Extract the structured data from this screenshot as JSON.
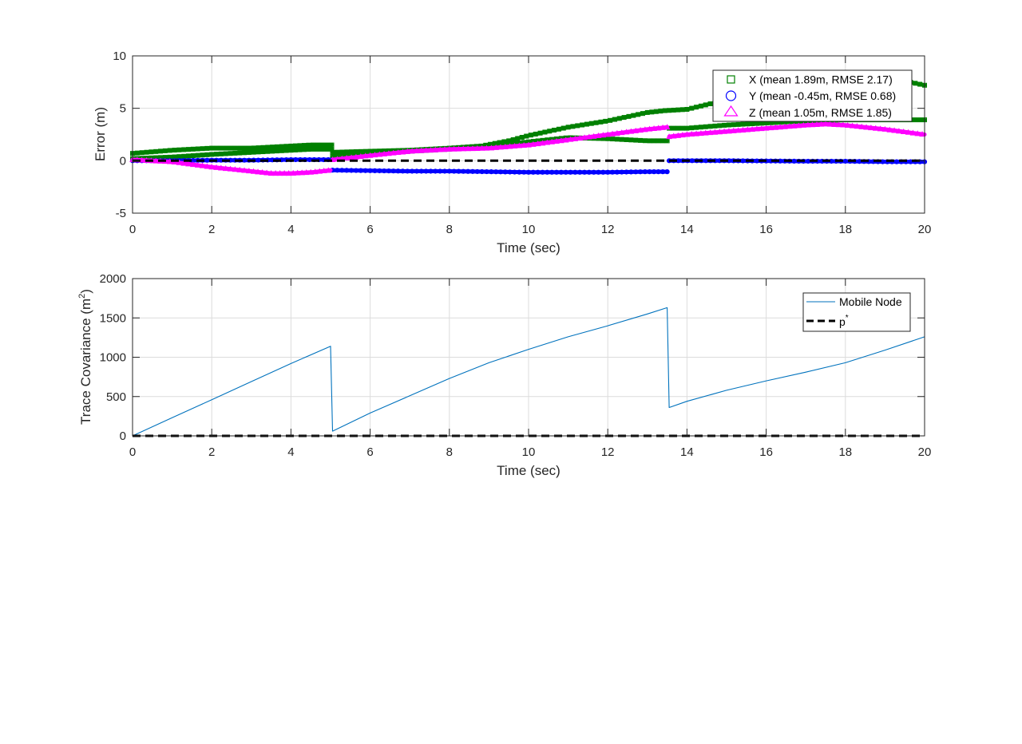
{
  "figure": {
    "background": "#ffffff"
  },
  "chart_data": [
    {
      "type": "scatter",
      "xlabel": "Time (sec)",
      "ylabel": "Error (m)",
      "xlim": [
        0,
        20
      ],
      "ylim": [
        -5,
        10
      ],
      "xticks": [
        "0",
        "2",
        "4",
        "6",
        "8",
        "10",
        "12",
        "14",
        "16",
        "18",
        "20"
      ],
      "yticks": [
        "-5",
        "0",
        "5",
        "10"
      ],
      "grid": true,
      "legend_position": "top-right",
      "series": [
        {
          "name": "X (mean 1.89m, RMSE 2.17)",
          "marker": "square",
          "color": "#008000",
          "segments": [
            {
              "x": [
                0,
                1,
                2,
                3,
                4,
                4.5,
                5.03
              ],
              "y": [
                0.7,
                1.0,
                1.2,
                1.2,
                1.4,
                1.5,
                1.5
              ]
            },
            {
              "x": [
                0,
                1,
                2,
                3,
                4,
                4.5,
                5.03
              ],
              "y": [
                0.2,
                0.35,
                0.6,
                0.8,
                1.0,
                1.1,
                1.1
              ]
            },
            {
              "x": [
                5.05,
                6,
                7,
                8,
                8.8,
                9.5,
                10,
                11,
                12,
                13,
                13.5
              ],
              "y": [
                0.8,
                0.9,
                1.0,
                1.2,
                1.4,
                1.9,
                2.4,
                3.2,
                3.8,
                4.6,
                4.8
              ]
            },
            {
              "x": [
                5.05,
                6,
                7,
                8,
                9,
                10,
                11,
                12,
                13,
                13.5
              ],
              "y": [
                0.4,
                0.6,
                0.9,
                1.1,
                1.4,
                1.8,
                2.2,
                2.1,
                1.9,
                1.9
              ]
            },
            {
              "x": [
                13.55,
                14,
                15,
                16,
                17,
                18,
                19,
                20
              ],
              "y": [
                4.8,
                4.9,
                5.8,
                7.0,
                7.8,
                8.3,
                8.0,
                7.2
              ]
            },
            {
              "x": [
                13.55,
                14,
                15,
                16,
                17,
                18,
                19,
                20
              ],
              "y": [
                3.1,
                3.1,
                3.4,
                3.6,
                3.8,
                3.9,
                3.9,
                3.9
              ]
            }
          ]
        },
        {
          "name": "Y (mean -0.45m, RMSE 0.68)",
          "marker": "circle",
          "color": "#0000ff",
          "segments": [
            {
              "x": [
                0,
                1,
                2,
                3,
                4,
                5
              ],
              "y": [
                0.0,
                0.0,
                0.05,
                0.05,
                0.1,
                0.1
              ]
            },
            {
              "x": [
                5.05,
                6,
                7,
                8,
                9,
                10,
                11,
                12,
                13,
                13.5
              ],
              "y": [
                -0.9,
                -0.95,
                -1.0,
                -1.0,
                -1.05,
                -1.1,
                -1.1,
                -1.1,
                -1.05,
                -1.05
              ]
            },
            {
              "x": [
                13.55,
                15,
                17,
                18,
                19,
                20
              ],
              "y": [
                0.0,
                0.0,
                -0.05,
                -0.05,
                -0.1,
                -0.1
              ]
            }
          ]
        },
        {
          "name": "Z (mean 1.05m, RMSE 1.85)",
          "marker": "triangle",
          "color": "#ff00ff",
          "segments": [
            {
              "x": [
                0,
                1,
                2,
                3,
                3.5,
                4,
                4.5,
                5
              ],
              "y": [
                0.1,
                -0.1,
                -0.6,
                -1.0,
                -1.2,
                -1.2,
                -1.1,
                -0.9
              ]
            },
            {
              "x": [
                5.05,
                6,
                7,
                8,
                9,
                10,
                11,
                12,
                13,
                13.5
              ],
              "y": [
                0.1,
                0.5,
                0.9,
                1.1,
                1.2,
                1.5,
                2.0,
                2.5,
                3.0,
                3.2
              ]
            },
            {
              "x": [
                13.55,
                14,
                15,
                16,
                17,
                17.5,
                18,
                19,
                20
              ],
              "y": [
                2.3,
                2.5,
                2.8,
                3.1,
                3.4,
                3.5,
                3.4,
                3.0,
                2.5
              ]
            }
          ]
        },
        {
          "name": "",
          "marker": "none",
          "line": "dashed",
          "color": "#000000",
          "in_legend": false,
          "segments": [
            {
              "x": [
                0,
                20
              ],
              "y": [
                0,
                0
              ]
            }
          ]
        }
      ]
    },
    {
      "type": "line",
      "xlabel": "Time (sec)",
      "ylabel": "Trace Covariance (m",
      "ylabel_superscript": "2",
      "ylabel_suffix": ")",
      "xlim": [
        0,
        20
      ],
      "ylim": [
        0,
        2000
      ],
      "xticks": [
        "0",
        "2",
        "4",
        "6",
        "8",
        "10",
        "12",
        "14",
        "16",
        "18",
        "20"
      ],
      "yticks": [
        "0",
        "500",
        "1000",
        "1500",
        "2000"
      ],
      "grid": true,
      "legend_position": "top-right",
      "series": [
        {
          "name": "Mobile Node",
          "color": "#0072bd",
          "line": "solid",
          "x": [
            0,
            1,
            2,
            3,
            4,
            5,
            5.05,
            6,
            7,
            8,
            9,
            10,
            11,
            12,
            13,
            13.5,
            13.55,
            14,
            15,
            16,
            17,
            18,
            19,
            20
          ],
          "y": [
            0,
            230,
            460,
            690,
            920,
            1140,
            60,
            290,
            510,
            730,
            930,
            1100,
            1260,
            1400,
            1550,
            1630,
            360,
            440,
            580,
            700,
            810,
            930,
            1090,
            1260
          ]
        },
        {
          "name": "p",
          "name_superscript": "*",
          "color": "#000000",
          "line": "dashed",
          "x": [
            0,
            20
          ],
          "y": [
            0,
            0
          ]
        }
      ]
    }
  ]
}
